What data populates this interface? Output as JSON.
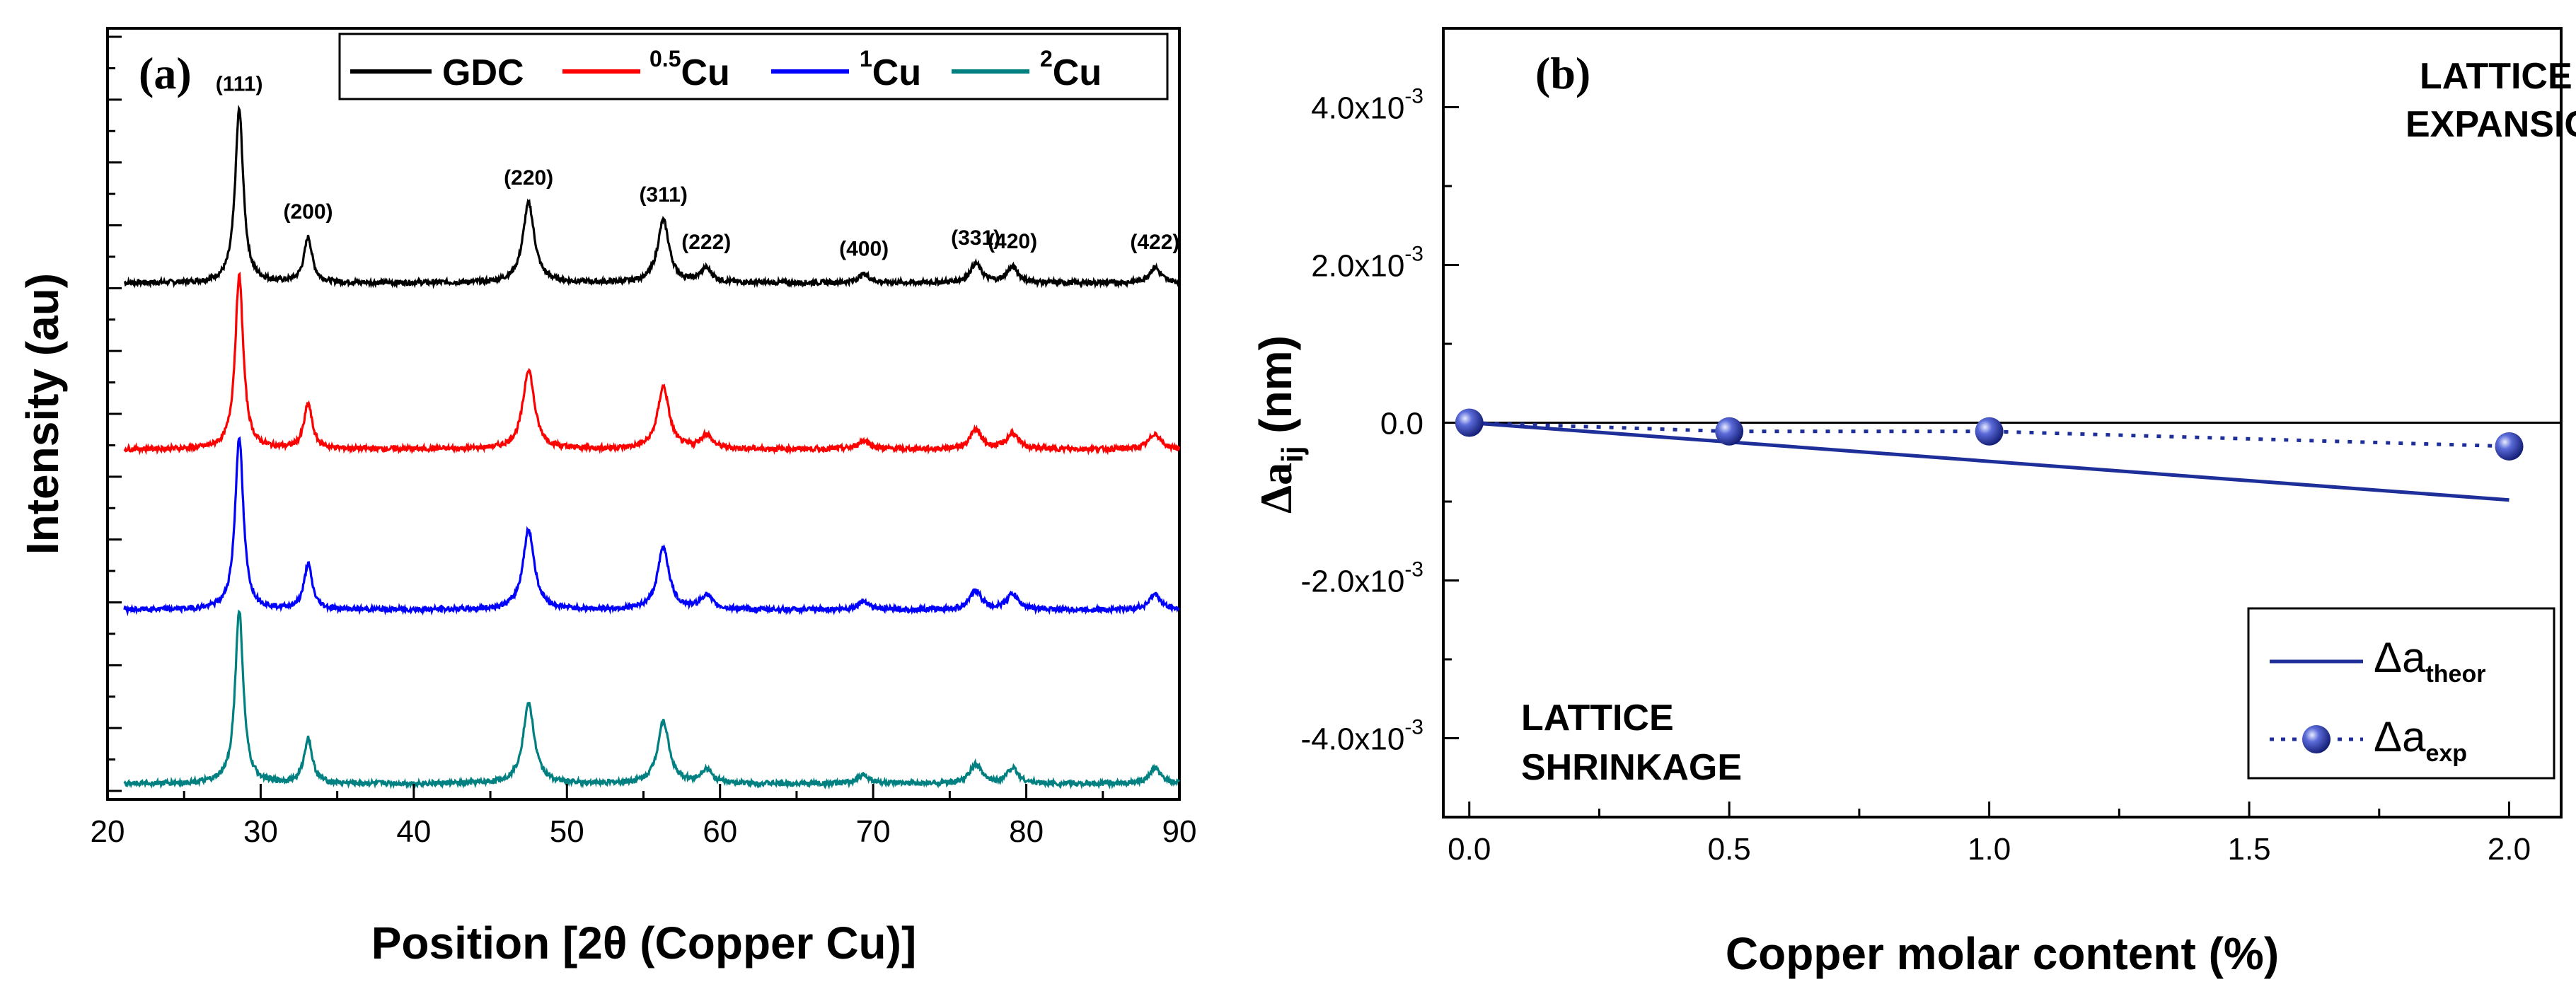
{
  "chart_data": [
    {
      "type": "line",
      "panel": "(a)",
      "xlabel": "Position [2θ (Copper Cu)]",
      "ylabel": "Intensity (au)",
      "xlim": [
        20,
        90
      ],
      "xticks": [
        "20",
        "30",
        "40",
        "50",
        "60",
        "70",
        "80",
        "90"
      ],
      "y_tick_labels": "none",
      "legend": {
        "position": "top",
        "entries": [
          {
            "label": "GDC",
            "sup": "",
            "color": "#000000"
          },
          {
            "label": "Cu",
            "sup": "0.5",
            "color": "#ff0000"
          },
          {
            "label": "Cu",
            "sup": "1",
            "color": "#0000ff"
          },
          {
            "label": "Cu",
            "sup": "2",
            "color": "#008080"
          }
        ]
      },
      "peaks": [
        {
          "label": "(111)",
          "two_theta": 28.6,
          "rel_height": 1.0
        },
        {
          "label": "(200)",
          "two_theta": 33.1,
          "rel_height": 0.26
        },
        {
          "label": "(220)",
          "two_theta": 47.5,
          "rel_height": 0.46
        },
        {
          "label": "(311)",
          "two_theta": 56.3,
          "rel_height": 0.36
        },
        {
          "label": "(222)",
          "two_theta": 59.1,
          "rel_height": 0.08
        },
        {
          "label": "(400)",
          "two_theta": 69.4,
          "rel_height": 0.05
        },
        {
          "label": "(331)",
          "two_theta": 76.7,
          "rel_height": 0.11
        },
        {
          "label": "(420)",
          "two_theta": 79.1,
          "rel_height": 0.09
        },
        {
          "label": "(422)",
          "two_theta": 88.4,
          "rel_height": 0.09
        }
      ],
      "series": [
        {
          "name": "GDC",
          "color": "#000000",
          "offset": 3
        },
        {
          "name": "0.5Cu",
          "color": "#ff0000",
          "offset": 2
        },
        {
          "name": "1Cu",
          "color": "#0000ff",
          "offset": 1
        },
        {
          "name": "2Cu",
          "color": "#008080",
          "offset": 0
        }
      ]
    },
    {
      "type": "line",
      "panel": "(b)",
      "xlabel": "Copper molar content (%)",
      "ylabel_main": "Δa",
      "ylabel_sub": "ij",
      "ylabel_unit": " (nm)",
      "xlim": [
        -0.05,
        2.1
      ],
      "ylim": [
        -0.005,
        0.005
      ],
      "xticks": [
        {
          "value": 0.0,
          "label": "0.0"
        },
        {
          "value": 0.5,
          "label": "0.5"
        },
        {
          "value": 1.0,
          "label": "1.0"
        },
        {
          "value": 1.5,
          "label": "1.5"
        },
        {
          "value": 2.0,
          "label": "2.0"
        }
      ],
      "yticks": [
        {
          "value": 0.004,
          "label": "4.0x10",
          "exp": "-3"
        },
        {
          "value": 0.002,
          "label": "2.0x10",
          "exp": "-3"
        },
        {
          "value": 0.0,
          "label": "0.0",
          "exp": ""
        },
        {
          "value": -0.002,
          "label": "-2.0x10",
          "exp": "-3"
        },
        {
          "value": -0.004,
          "label": "-4.0x10",
          "exp": "-3"
        }
      ],
      "zero_line": true,
      "annotations": {
        "expansion": [
          "LATTICE",
          "EXPANSION"
        ],
        "shrinkage": [
          "LATTICE",
          "SHRINKAGE"
        ]
      },
      "legend": {
        "position": "bottom-right",
        "entries": [
          {
            "main": "Δa",
            "sub": "theor",
            "style": "solid line"
          },
          {
            "main": "Δa",
            "sub": "exp",
            "style": "dotted line with spheres"
          }
        ]
      },
      "series": [
        {
          "name": "Δa theor",
          "style": "solid",
          "color": "#1f2f9a",
          "x": [
            0.0,
            2.0
          ],
          "y": [
            0.0,
            -0.00098
          ]
        },
        {
          "name": "Δa exp",
          "style": "dotted-markers",
          "color": "#1f2f9a",
          "x": [
            0.0,
            0.5,
            1.0,
            2.0
          ],
          "y": [
            0.0,
            -0.00011,
            -0.00011,
            -0.0003
          ]
        }
      ]
    }
  ]
}
